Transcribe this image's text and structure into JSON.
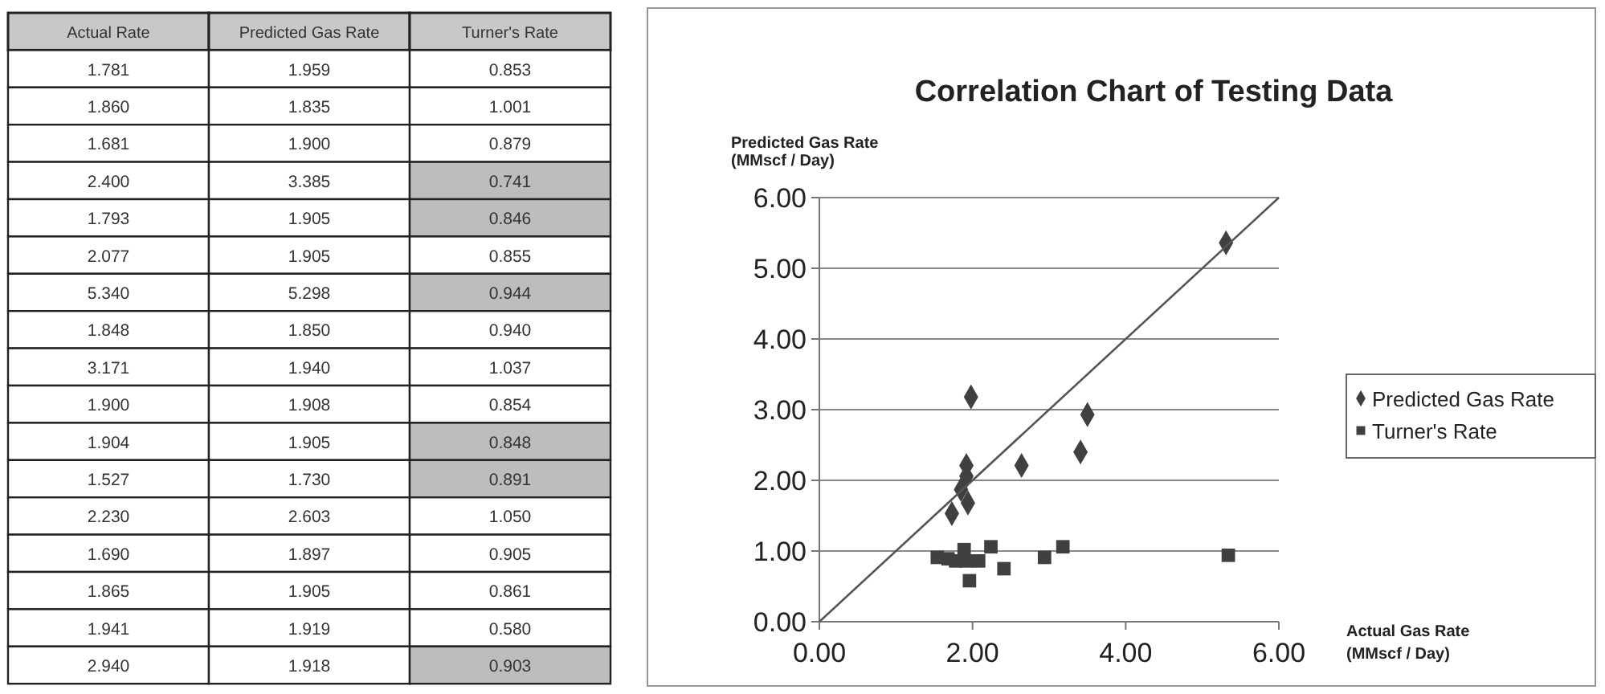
{
  "chart_data": [
    {
      "type": "other",
      "categories": [
        "Actual Rate",
        "Predicted Gas Rate",
        "Turner's Rate"
      ],
      "cell_labels": [
        [
          "1.781",
          "1.959",
          "0.853"
        ],
        [
          "1.860",
          "1.835",
          "1.001"
        ],
        [
          "1.681",
          "1.900",
          "0.879"
        ],
        [
          "2.400",
          "3.385",
          "0.741"
        ],
        [
          "1.793",
          "1.905",
          "0.846"
        ],
        [
          "2.077",
          "1.905",
          "0.855"
        ],
        [
          "5.340",
          "5.298",
          "0.944"
        ],
        [
          "1.848",
          "1.850",
          "0.940"
        ],
        [
          "3.171",
          "1.940",
          "1.037"
        ],
        [
          "1.900",
          "1.908",
          "0.854"
        ],
        [
          "1.904",
          "1.905",
          "0.848"
        ],
        [
          "1.527",
          "1.730",
          "0.891"
        ],
        [
          "2.230",
          "2.603",
          "1.050"
        ],
        [
          "1.690",
          "1.897",
          "0.905"
        ],
        [
          "1.865",
          "1.905",
          "0.861"
        ],
        [
          "1.941",
          "1.919",
          "0.580"
        ],
        [
          "2.940",
          "1.918",
          "0.903"
        ]
      ],
      "colors": [
        [
          "#ffffff",
          "#ffffff",
          "#ffffff"
        ],
        [
          "#ffffff",
          "#ffffff",
          "#ffffff"
        ],
        [
          "#ffffff",
          "#ffffff",
          "#ffffff"
        ],
        [
          "#ffffff",
          "#ffffff",
          "#bdbdbd"
        ],
        [
          "#ffffff",
          "#ffffff",
          "#bdbdbd"
        ],
        [
          "#ffffff",
          "#ffffff",
          "#ffffff"
        ],
        [
          "#ffffff",
          "#ffffff",
          "#bdbdbd"
        ],
        [
          "#ffffff",
          "#ffffff",
          "#ffffff"
        ],
        [
          "#ffffff",
          "#ffffff",
          "#ffffff"
        ],
        [
          "#ffffff",
          "#ffffff",
          "#ffffff"
        ],
        [
          "#ffffff",
          "#ffffff",
          "#bdbdbd"
        ],
        [
          "#ffffff",
          "#ffffff",
          "#bdbdbd"
        ],
        [
          "#ffffff",
          "#ffffff",
          "#ffffff"
        ],
        [
          "#ffffff",
          "#ffffff",
          "#ffffff"
        ],
        [
          "#ffffff",
          "#ffffff",
          "#ffffff"
        ],
        [
          "#ffffff",
          "#ffffff",
          "#ffffff"
        ],
        [
          "#ffffff",
          "#ffffff",
          "#bdbdbd"
        ]
      ]
    },
    {
      "type": "scatter",
      "title": "Correlation Chart of Testing Data",
      "xlabel": "Actual Gas Rate\n(MMscf / Day)",
      "ylabel": "Predicted Gas Rate\n(MMscf / Day)",
      "xlim": [
        0,
        6
      ],
      "ylim": [
        0,
        6
      ],
      "xticks": [
        {
          "value": 0,
          "label": "0.00"
        },
        {
          "value": 2,
          "label": "2.00"
        },
        {
          "value": 4,
          "label": "4.00"
        },
        {
          "value": 6,
          "label": "6.00"
        }
      ],
      "yticks": [
        {
          "value": 0,
          "label": "0.00"
        },
        {
          "value": 1,
          "label": "1.00"
        },
        {
          "value": 2,
          "label": "2.00"
        },
        {
          "value": 3,
          "label": "3.00"
        },
        {
          "value": 4,
          "label": "4.00"
        },
        {
          "value": 5,
          "label": "5.00"
        },
        {
          "value": 6,
          "label": "6.00"
        }
      ],
      "grid": "y",
      "legend": "right",
      "series": [
        {
          "name": "Predicted Gas Rate",
          "color": "#404040",
          "marker": "diamond",
          "x": [
            5.31,
            1.98,
            3.5,
            3.41,
            2.64,
            1.92,
            1.92,
            1.85,
            1.94,
            1.73
          ],
          "values": [
            5.36,
            3.18,
            2.93,
            2.4,
            2.21,
            2.21,
            2.06,
            1.87,
            1.68,
            1.53
          ]
        },
        {
          "name": "Turner's Rate",
          "color": "#404040",
          "marker": "square",
          "x": [
            1.54,
            1.68,
            1.78,
            1.89,
            1.92,
            1.96,
            2.08,
            2.24,
            2.41,
            2.94,
            3.18,
            5.34
          ],
          "values": [
            0.91,
            0.89,
            0.86,
            1.02,
            0.86,
            0.58,
            0.86,
            1.06,
            0.75,
            0.91,
            1.06,
            0.94
          ]
        },
        {
          "type": "line",
          "color": "#555555",
          "x": [
            0,
            6
          ],
          "values": [
            0,
            6
          ]
        }
      ]
    }
  ]
}
